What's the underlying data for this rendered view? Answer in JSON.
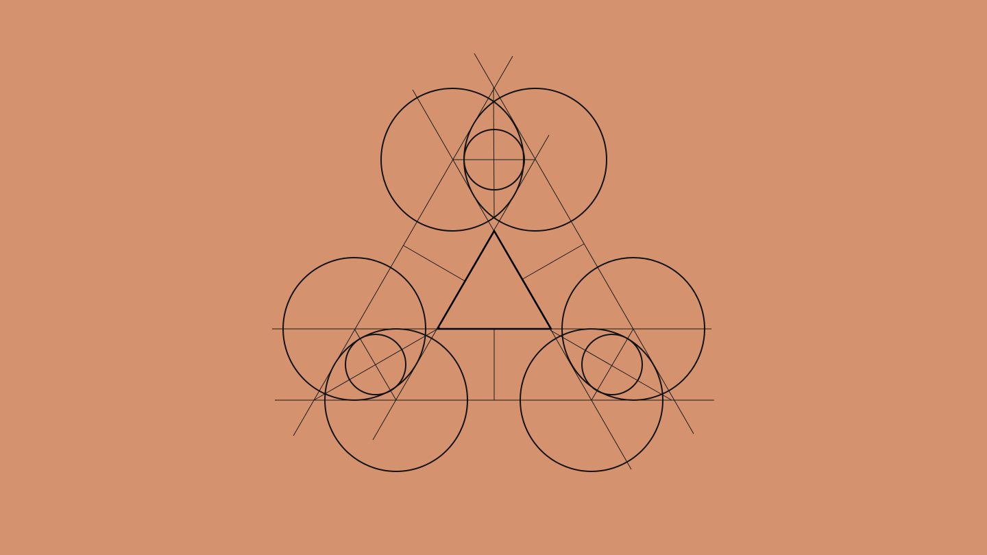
{
  "background_color": "#D4936E",
  "line_color": "#111111",
  "figure_name": "geometric-construction-triangle-circles"
}
